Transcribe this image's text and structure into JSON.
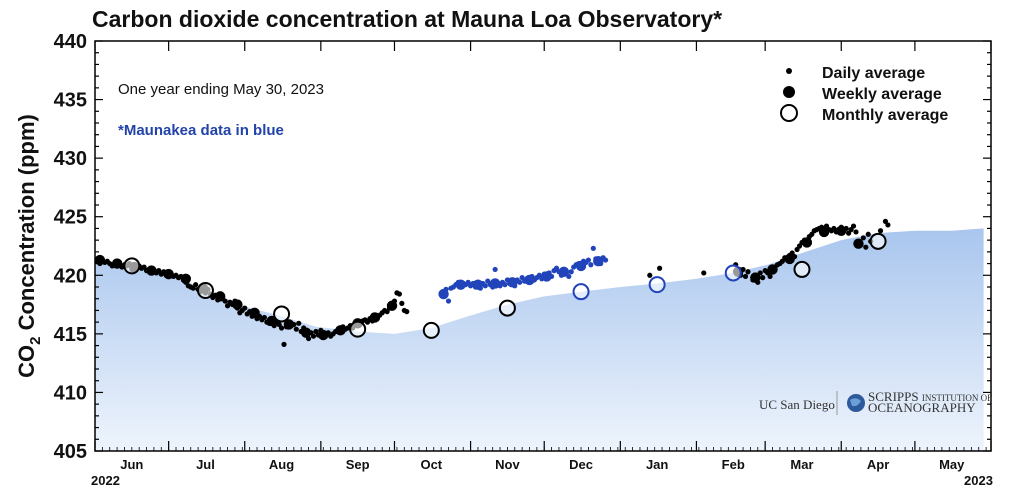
{
  "chart_data": {
    "type": "scatter",
    "title": "Carbon dioxide concentration at Mauna Loa Observatory*",
    "ylabel_main": "CO",
    "ylabel_sub": "2",
    "ylabel_rest": " Concentration (ppm)",
    "ylim": [
      405,
      440
    ],
    "yticks": [
      405,
      410,
      415,
      420,
      425,
      430,
      435,
      440
    ],
    "xlim_days": [
      0,
      365
    ],
    "xticks": [
      {
        "label": "Jun",
        "day": 15
      },
      {
        "label": "Jul",
        "day": 45
      },
      {
        "label": "Aug",
        "day": 76
      },
      {
        "label": "Sep",
        "day": 107
      },
      {
        "label": "Oct",
        "day": 137
      },
      {
        "label": "Nov",
        "day": 168
      },
      {
        "label": "Dec",
        "day": 198
      },
      {
        "label": "Jan",
        "day": 229
      },
      {
        "label": "Feb",
        "day": 260
      },
      {
        "label": "Mar",
        "day": 288
      },
      {
        "label": "Apr",
        "day": 319
      },
      {
        "label": "May",
        "day": 349
      }
    ],
    "year_start": "2022",
    "year_end": "2023",
    "annotation_period": "One year ending May 30, 2023",
    "annotation_blue": "*Maunakea data in blue",
    "legend": {
      "position": "top-right",
      "items": [
        "Daily average",
        "Weekly average",
        "Monthly average"
      ]
    },
    "colors": {
      "mlo": "#000000",
      "mko": "#2244bb",
      "fill_top": "#a9c6ee",
      "fill_bottom": "#eef4fc"
    },
    "daily_mlo": [
      [
        0,
        421.2
      ],
      [
        1,
        421.4
      ],
      [
        2,
        421.0
      ],
      [
        3,
        421.3
      ],
      [
        4,
        421.1
      ],
      [
        5,
        421.2
      ],
      [
        6,
        421.0
      ],
      [
        7,
        420.8
      ],
      [
        8,
        421.0
      ],
      [
        9,
        420.9
      ],
      [
        10,
        421.1
      ],
      [
        11,
        420.7
      ],
      [
        12,
        420.9
      ],
      [
        13,
        420.8
      ],
      [
        14,
        421.0
      ],
      [
        15,
        420.5
      ],
      [
        16,
        420.9
      ],
      [
        17,
        420.6
      ],
      [
        18,
        420.8
      ],
      [
        19,
        420.6
      ],
      [
        20,
        420.7
      ],
      [
        21,
        420.4
      ],
      [
        22,
        420.5
      ],
      [
        23,
        420.6
      ],
      [
        24,
        420.3
      ],
      [
        25,
        420.2
      ],
      [
        26,
        420.4
      ],
      [
        27,
        420.1
      ],
      [
        28,
        420.3
      ],
      [
        29,
        420.0
      ],
      [
        30,
        420.2
      ],
      [
        31,
        420.1
      ],
      [
        32,
        419.9
      ],
      [
        33,
        420.0
      ],
      [
        34,
        419.8
      ],
      [
        35,
        419.9
      ],
      [
        36,
        419.6
      ],
      [
        37,
        419.4
      ],
      [
        38,
        419.1
      ],
      [
        39,
        419.0
      ],
      [
        40,
        418.9
      ],
      [
        41,
        419.2
      ],
      [
        42,
        418.8
      ],
      [
        43,
        418.6
      ],
      [
        44,
        418.9
      ],
      [
        45,
        418.5
      ],
      [
        46,
        418.8
      ],
      [
        47,
        418.4
      ],
      [
        48,
        418.1
      ],
      [
        49,
        418.3
      ],
      [
        50,
        417.9
      ],
      [
        51,
        418.2
      ],
      [
        52,
        418.0
      ],
      [
        53,
        417.8
      ],
      [
        54,
        417.4
      ],
      [
        55,
        417.7
      ],
      [
        56,
        417.5
      ],
      [
        57,
        417.8
      ],
      [
        58,
        417.2
      ],
      [
        59,
        416.8
      ],
      [
        60,
        417.0
      ],
      [
        61,
        417.2
      ],
      [
        62,
        416.7
      ],
      [
        63,
        416.9
      ],
      [
        64,
        416.5
      ],
      [
        65,
        416.8
      ],
      [
        66,
        416.3
      ],
      [
        67,
        416.5
      ],
      [
        68,
        416.2
      ],
      [
        69,
        416.4
      ],
      [
        70,
        416.0
      ],
      [
        71,
        415.9
      ],
      [
        72,
        416.2
      ],
      [
        73,
        415.7
      ],
      [
        74,
        416.0
      ],
      [
        75,
        415.8
      ],
      [
        76,
        415.5
      ],
      [
        77,
        414.1
      ],
      [
        78,
        415.6
      ],
      [
        79,
        415.9
      ],
      [
        80,
        415.7
      ],
      [
        81,
        415.8
      ],
      [
        82,
        415.4
      ],
      [
        83,
        415.9
      ],
      [
        84,
        415.2
      ],
      [
        85,
        415.5
      ],
      [
        86,
        415.0
      ],
      [
        87,
        414.6
      ],
      [
        88,
        415.1
      ],
      [
        89,
        414.8
      ],
      [
        90,
        415.2
      ],
      [
        91,
        414.9
      ],
      [
        92,
        415.3
      ],
      [
        93,
        414.7
      ],
      [
        94,
        414.9
      ],
      [
        95,
        415.1
      ],
      [
        96,
        414.8
      ],
      [
        97,
        415.0
      ],
      [
        98,
        415.2
      ],
      [
        99,
        415.4
      ],
      [
        100,
        415.3
      ],
      [
        101,
        415.6
      ],
      [
        102,
        415.4
      ],
      [
        103,
        415.5
      ],
      [
        104,
        415.7
      ],
      [
        105,
        415.5
      ],
      [
        106,
        415.9
      ],
      [
        107,
        416.0
      ],
      [
        108,
        415.8
      ],
      [
        109,
        416.1
      ],
      [
        110,
        416.2
      ],
      [
        111,
        416.0
      ],
      [
        112,
        416.3
      ],
      [
        113,
        416.1
      ],
      [
        114,
        416.5
      ],
      [
        115,
        416.3
      ],
      [
        116,
        416.6
      ],
      [
        117,
        416.8
      ],
      [
        118,
        417.0
      ],
      [
        119,
        416.9
      ],
      [
        120,
        417.2
      ],
      [
        121,
        417.4
      ],
      [
        122,
        417.8
      ],
      [
        123,
        418.5
      ],
      [
        124,
        418.4
      ],
      [
        125,
        417.6
      ],
      [
        126,
        417.0
      ],
      [
        127,
        416.9
      ],
      [
        226,
        420.0
      ],
      [
        230,
        420.6
      ],
      [
        248,
        420.2
      ],
      [
        261,
        420.9
      ],
      [
        262,
        420.4
      ],
      [
        263,
        420.0
      ],
      [
        264,
        420.5
      ],
      [
        265,
        419.9
      ],
      [
        266,
        420.3
      ],
      [
        268,
        419.6
      ],
      [
        270,
        419.4
      ],
      [
        271,
        420.2
      ],
      [
        272,
        419.8
      ],
      [
        273,
        420.4
      ],
      [
        274,
        420.2
      ],
      [
        275,
        419.9
      ],
      [
        276,
        420.5
      ],
      [
        277,
        420.7
      ],
      [
        278,
        420.9
      ],
      [
        279,
        421.0
      ],
      [
        280,
        421.2
      ],
      [
        281,
        421.5
      ],
      [
        282,
        421.3
      ],
      [
        283,
        421.7
      ],
      [
        284,
        421.9
      ],
      [
        285,
        421.6
      ],
      [
        286,
        422.2
      ],
      [
        287,
        422.5
      ],
      [
        288,
        422.8
      ],
      [
        289,
        423.0
      ],
      [
        290,
        422.9
      ],
      [
        291,
        423.3
      ],
      [
        292,
        423.5
      ],
      [
        293,
        423.8
      ],
      [
        294,
        423.9
      ],
      [
        295,
        424.0
      ],
      [
        296,
        424.1
      ],
      [
        297,
        424.0
      ],
      [
        298,
        424.2
      ],
      [
        299,
        423.9
      ],
      [
        300,
        423.8
      ],
      [
        301,
        424.0
      ],
      [
        302,
        423.7
      ],
      [
        303,
        423.9
      ],
      [
        304,
        424.1
      ],
      [
        305,
        423.8
      ],
      [
        306,
        424.0
      ],
      [
        307,
        423.6
      ],
      [
        308,
        423.9
      ],
      [
        309,
        424.2
      ],
      [
        310,
        423.7
      ],
      [
        311,
        422.8
      ],
      [
        312,
        422.6
      ],
      [
        313,
        423.2
      ],
      [
        314,
        422.4
      ],
      [
        315,
        423.5
      ],
      [
        316,
        422.9
      ],
      [
        320,
        423.8
      ],
      [
        322,
        424.6
      ],
      [
        323,
        424.3
      ]
    ],
    "daily_mko": [
      [
        142,
        418.6
      ],
      [
        143,
        418.8
      ],
      [
        144,
        417.8
      ],
      [
        145,
        418.9
      ],
      [
        146,
        419.0
      ],
      [
        147,
        419.2
      ],
      [
        148,
        419.4
      ],
      [
        149,
        419.1
      ],
      [
        150,
        419.3
      ],
      [
        151,
        419.2
      ],
      [
        152,
        419.4
      ],
      [
        153,
        419.1
      ],
      [
        154,
        419.3
      ],
      [
        155,
        419.0
      ],
      [
        156,
        419.2
      ],
      [
        157,
        418.9
      ],
      [
        158,
        419.3
      ],
      [
        159,
        419.1
      ],
      [
        160,
        419.5
      ],
      [
        161,
        419.2
      ],
      [
        162,
        419.0
      ],
      [
        163,
        420.5
      ],
      [
        164,
        419.3
      ],
      [
        165,
        419.1
      ],
      [
        166,
        419.4
      ],
      [
        167,
        419.2
      ],
      [
        168,
        419.6
      ],
      [
        169,
        419.3
      ],
      [
        170,
        419.5
      ],
      [
        171,
        419.1
      ],
      [
        172,
        419.6
      ],
      [
        173,
        419.4
      ],
      [
        174,
        419.8
      ],
      [
        175,
        419.5
      ],
      [
        176,
        419.7
      ],
      [
        177,
        419.4
      ],
      [
        178,
        419.9
      ],
      [
        179,
        419.6
      ],
      [
        180,
        419.8
      ],
      [
        181,
        420.0
      ],
      [
        182,
        419.7
      ],
      [
        183,
        420.1
      ],
      [
        184,
        419.8
      ],
      [
        185,
        420.2
      ],
      [
        186,
        419.9
      ],
      [
        187,
        420.4
      ],
      [
        188,
        420.6
      ],
      [
        189,
        420.3
      ],
      [
        190,
        420.0
      ],
      [
        191,
        420.5
      ],
      [
        192,
        420.2
      ],
      [
        193,
        419.9
      ],
      [
        194,
        420.3
      ],
      [
        195,
        420.7
      ],
      [
        196,
        420.9
      ],
      [
        197,
        421.0
      ],
      [
        198,
        420.6
      ],
      [
        199,
        421.2
      ],
      [
        200,
        421.1
      ],
      [
        201,
        421.3
      ],
      [
        202,
        420.9
      ],
      [
        203,
        422.3
      ],
      [
        204,
        421.4
      ],
      [
        205,
        421.2
      ],
      [
        206,
        421.0
      ],
      [
        207,
        421.5
      ],
      [
        208,
        421.3
      ]
    ],
    "weekly_mlo": [
      [
        2,
        421.3
      ],
      [
        9,
        421.0
      ],
      [
        16,
        420.7
      ],
      [
        23,
        420.4
      ],
      [
        30,
        420.1
      ],
      [
        37,
        419.7
      ],
      [
        44,
        418.9
      ],
      [
        51,
        418.2
      ],
      [
        58,
        417.5
      ],
      [
        65,
        416.8
      ],
      [
        72,
        416.1
      ],
      [
        79,
        415.8
      ],
      [
        86,
        415.1
      ],
      [
        93,
        414.9
      ],
      [
        100,
        415.3
      ],
      [
        107,
        415.9
      ],
      [
        114,
        416.4
      ],
      [
        121,
        417.4
      ],
      [
        262,
        420.3
      ],
      [
        269,
        419.8
      ],
      [
        276,
        420.5
      ],
      [
        283,
        421.4
      ],
      [
        290,
        422.8
      ],
      [
        297,
        423.7
      ],
      [
        304,
        423.8
      ],
      [
        311,
        422.7
      ]
    ],
    "weekly_mko": [
      [
        142,
        418.4
      ],
      [
        149,
        419.2
      ],
      [
        156,
        419.2
      ],
      [
        163,
        419.3
      ],
      [
        170,
        419.4
      ],
      [
        177,
        419.6
      ],
      [
        184,
        419.9
      ],
      [
        191,
        420.3
      ],
      [
        198,
        420.8
      ],
      [
        205,
        421.2
      ]
    ],
    "monthly_mlo": [
      [
        15,
        420.8
      ],
      [
        45,
        418.7
      ],
      [
        76,
        416.7
      ],
      [
        107,
        415.4
      ],
      [
        137,
        415.3
      ],
      [
        168,
        417.2
      ],
      [
        288,
        420.5
      ],
      [
        319,
        422.9
      ]
    ],
    "monthly_mko": [
      [
        198,
        418.6
      ],
      [
        229,
        419.2
      ],
      [
        260,
        420.2
      ]
    ],
    "fill_curve": [
      [
        0,
        421.3
      ],
      [
        15,
        420.8
      ],
      [
        30,
        420.1
      ],
      [
        45,
        418.8
      ],
      [
        60,
        417.4
      ],
      [
        76,
        416.5
      ],
      [
        90,
        415.6
      ],
      [
        107,
        415.2
      ],
      [
        122,
        415.0
      ],
      [
        137,
        415.5
      ],
      [
        152,
        416.5
      ],
      [
        168,
        417.5
      ],
      [
        183,
        418.2
      ],
      [
        198,
        418.6
      ],
      [
        214,
        419.0
      ],
      [
        229,
        419.3
      ],
      [
        245,
        419.7
      ],
      [
        260,
        420.2
      ],
      [
        274,
        420.9
      ],
      [
        288,
        421.9
      ],
      [
        304,
        423.0
      ],
      [
        319,
        423.6
      ],
      [
        334,
        423.8
      ],
      [
        349,
        423.8
      ],
      [
        362,
        424.0
      ]
    ]
  },
  "logos": {
    "ucsd": "UC San Diego",
    "scripps_line1": "SCRIPPS",
    "scripps_line1b": "INSTITUTION OF",
    "scripps_line2": "OCEANOGRAPHY"
  }
}
